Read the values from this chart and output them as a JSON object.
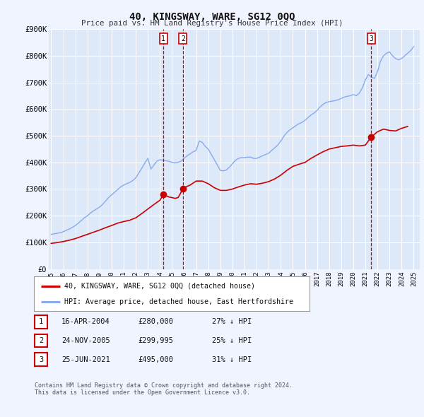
{
  "title": "40, KINGSWAY, WARE, SG12 0QQ",
  "subtitle": "Price paid vs. HM Land Registry's House Price Index (HPI)",
  "background_color": "#f0f4ff",
  "plot_bg_color": "#dde8f8",
  "grid_color": "#ffffff",
  "ylim": [
    0,
    900000
  ],
  "yticks": [
    0,
    100000,
    200000,
    300000,
    400000,
    500000,
    600000,
    700000,
    800000,
    900000
  ],
  "ytick_labels": [
    "£0",
    "£100K",
    "£200K",
    "£300K",
    "£400K",
    "£500K",
    "£600K",
    "£700K",
    "£800K",
    "£900K"
  ],
  "xlim_start": 1994.8,
  "xlim_end": 2025.5,
  "xtick_years": [
    1995,
    1996,
    1997,
    1998,
    1999,
    2000,
    2001,
    2002,
    2003,
    2004,
    2005,
    2006,
    2007,
    2008,
    2009,
    2010,
    2011,
    2012,
    2013,
    2014,
    2015,
    2016,
    2017,
    2018,
    2019,
    2020,
    2021,
    2022,
    2023,
    2024,
    2025
  ],
  "sale_color": "#cc0000",
  "hpi_color": "#88aaee",
  "sale_dot_color": "#cc0000",
  "sale_label": "40, KINGSWAY, WARE, SG12 0QQ (detached house)",
  "hpi_label": "HPI: Average price, detached house, East Hertfordshire",
  "transactions": [
    {
      "num": 1,
      "date_label": "16-APR-2004",
      "x": 2004.29,
      "price": 280000,
      "price_label": "£280,000",
      "pct": "27% ↓ HPI"
    },
    {
      "num": 2,
      "date_label": "24-NOV-2005",
      "x": 2005.9,
      "price": 299995,
      "price_label": "£299,995",
      "pct": "25% ↓ HPI"
    },
    {
      "num": 3,
      "date_label": "25-JUN-2021",
      "x": 2021.48,
      "price": 495000,
      "price_label": "£495,000",
      "pct": "31% ↓ HPI"
    }
  ],
  "footer_line1": "Contains HM Land Registry data © Crown copyright and database right 2024.",
  "footer_line2": "This data is licensed under the Open Government Licence v3.0.",
  "hpi_data_x": [
    1995.0,
    1995.25,
    1995.5,
    1995.75,
    1996.0,
    1996.25,
    1996.5,
    1996.75,
    1997.0,
    1997.25,
    1997.5,
    1997.75,
    1998.0,
    1998.25,
    1998.5,
    1998.75,
    1999.0,
    1999.25,
    1999.5,
    1999.75,
    2000.0,
    2000.25,
    2000.5,
    2000.75,
    2001.0,
    2001.25,
    2001.5,
    2001.75,
    2002.0,
    2002.25,
    2002.5,
    2002.75,
    2003.0,
    2003.25,
    2003.5,
    2003.75,
    2004.0,
    2004.25,
    2004.5,
    2004.75,
    2005.0,
    2005.25,
    2005.5,
    2005.75,
    2006.0,
    2006.25,
    2006.5,
    2006.75,
    2007.0,
    2007.25,
    2007.5,
    2007.75,
    2008.0,
    2008.25,
    2008.5,
    2008.75,
    2009.0,
    2009.25,
    2009.5,
    2009.75,
    2010.0,
    2010.25,
    2010.5,
    2010.75,
    2011.0,
    2011.25,
    2011.5,
    2011.75,
    2012.0,
    2012.25,
    2012.5,
    2012.75,
    2013.0,
    2013.25,
    2013.5,
    2013.75,
    2014.0,
    2014.25,
    2014.5,
    2014.75,
    2015.0,
    2015.25,
    2015.5,
    2015.75,
    2016.0,
    2016.25,
    2016.5,
    2016.75,
    2017.0,
    2017.25,
    2017.5,
    2017.75,
    2018.0,
    2018.25,
    2018.5,
    2018.75,
    2019.0,
    2019.25,
    2019.5,
    2019.75,
    2020.0,
    2020.25,
    2020.5,
    2020.75,
    2021.0,
    2021.25,
    2021.5,
    2021.75,
    2022.0,
    2022.25,
    2022.5,
    2022.75,
    2023.0,
    2023.25,
    2023.5,
    2023.75,
    2024.0,
    2024.25,
    2024.5,
    2024.75,
    2025.0
  ],
  "hpi_data_y": [
    130000,
    132000,
    134000,
    136000,
    140000,
    145000,
    150000,
    156000,
    163000,
    172000,
    182000,
    192000,
    200000,
    210000,
    218000,
    225000,
    232000,
    242000,
    255000,
    268000,
    278000,
    288000,
    298000,
    308000,
    315000,
    320000,
    325000,
    332000,
    342000,
    360000,
    378000,
    398000,
    415000,
    375000,
    390000,
    405000,
    410000,
    408000,
    406000,
    404000,
    400000,
    398000,
    400000,
    405000,
    415000,
    425000,
    432000,
    440000,
    445000,
    480000,
    475000,
    460000,
    450000,
    430000,
    410000,
    390000,
    370000,
    368000,
    372000,
    382000,
    395000,
    408000,
    415000,
    418000,
    418000,
    420000,
    420000,
    415000,
    415000,
    420000,
    425000,
    430000,
    435000,
    445000,
    455000,
    465000,
    480000,
    498000,
    512000,
    522000,
    530000,
    538000,
    545000,
    550000,
    558000,
    568000,
    578000,
    585000,
    595000,
    608000,
    618000,
    625000,
    628000,
    630000,
    632000,
    635000,
    640000,
    645000,
    648000,
    650000,
    655000,
    650000,
    660000,
    680000,
    710000,
    730000,
    720000,
    715000,
    740000,
    780000,
    800000,
    810000,
    815000,
    800000,
    790000,
    785000,
    790000,
    800000,
    810000,
    820000,
    835000
  ],
  "sale_data_x": [
    1995.0,
    1995.5,
    1996.0,
    1996.5,
    1997.0,
    1997.5,
    1998.0,
    1998.5,
    1999.0,
    1999.5,
    2000.0,
    2000.5,
    2001.0,
    2001.5,
    2002.0,
    2002.5,
    2003.0,
    2003.5,
    2004.0,
    2004.29,
    2004.5,
    2004.75,
    2005.0,
    2005.25,
    2005.5,
    2005.9,
    2006.0,
    2006.5,
    2007.0,
    2007.5,
    2008.0,
    2008.5,
    2009.0,
    2009.5,
    2010.0,
    2010.5,
    2011.0,
    2011.5,
    2012.0,
    2012.5,
    2013.0,
    2013.5,
    2014.0,
    2014.5,
    2015.0,
    2015.5,
    2016.0,
    2016.5,
    2017.0,
    2017.5,
    2018.0,
    2018.5,
    2019.0,
    2019.5,
    2020.0,
    2020.5,
    2021.0,
    2021.48,
    2022.0,
    2022.5,
    2023.0,
    2023.5,
    2024.0,
    2024.5
  ],
  "sale_data_y": [
    96000,
    99000,
    103000,
    108000,
    114000,
    122000,
    130000,
    138000,
    146000,
    155000,
    163000,
    172000,
    178000,
    183000,
    192000,
    208000,
    225000,
    242000,
    258000,
    280000,
    275000,
    270000,
    268000,
    265000,
    268000,
    299995,
    305000,
    315000,
    330000,
    330000,
    320000,
    305000,
    295000,
    295000,
    300000,
    308000,
    315000,
    320000,
    318000,
    322000,
    328000,
    338000,
    352000,
    370000,
    385000,
    393000,
    400000,
    415000,
    428000,
    440000,
    450000,
    455000,
    460000,
    462000,
    465000,
    462000,
    465000,
    495000,
    515000,
    525000,
    520000,
    518000,
    528000,
    535000
  ]
}
